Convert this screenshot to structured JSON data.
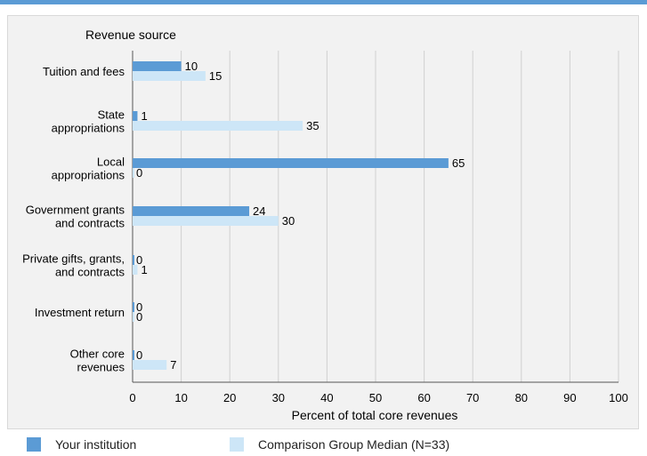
{
  "chart_data": {
    "type": "bar",
    "title": "Revenue source",
    "xlabel": "Percent of total core revenues",
    "xlim": [
      0,
      100
    ],
    "xticks": [
      "0",
      "10",
      "20",
      "30",
      "40",
      "50",
      "60",
      "70",
      "80",
      "90",
      "100"
    ],
    "categories": [
      [
        "Tuition and fees"
      ],
      [
        "State",
        "appropriations"
      ],
      [
        "Local",
        "appropriations"
      ],
      [
        "Government grants",
        "and contracts"
      ],
      [
        "Private gifts, grants,",
        "and contracts"
      ],
      [
        "Investment return"
      ],
      [
        "Other core",
        "revenues"
      ]
    ],
    "series": [
      {
        "name": "Your institution",
        "color": "#5b9bd5",
        "values": [
          10,
          1,
          65,
          24,
          0,
          0,
          0
        ]
      },
      {
        "name": "Comparison Group Median (N=33)",
        "color": "#cde6f7",
        "values": [
          15,
          35,
          0,
          30,
          1,
          0,
          7
        ]
      }
    ],
    "grid": true,
    "legend_position": "bottom"
  }
}
